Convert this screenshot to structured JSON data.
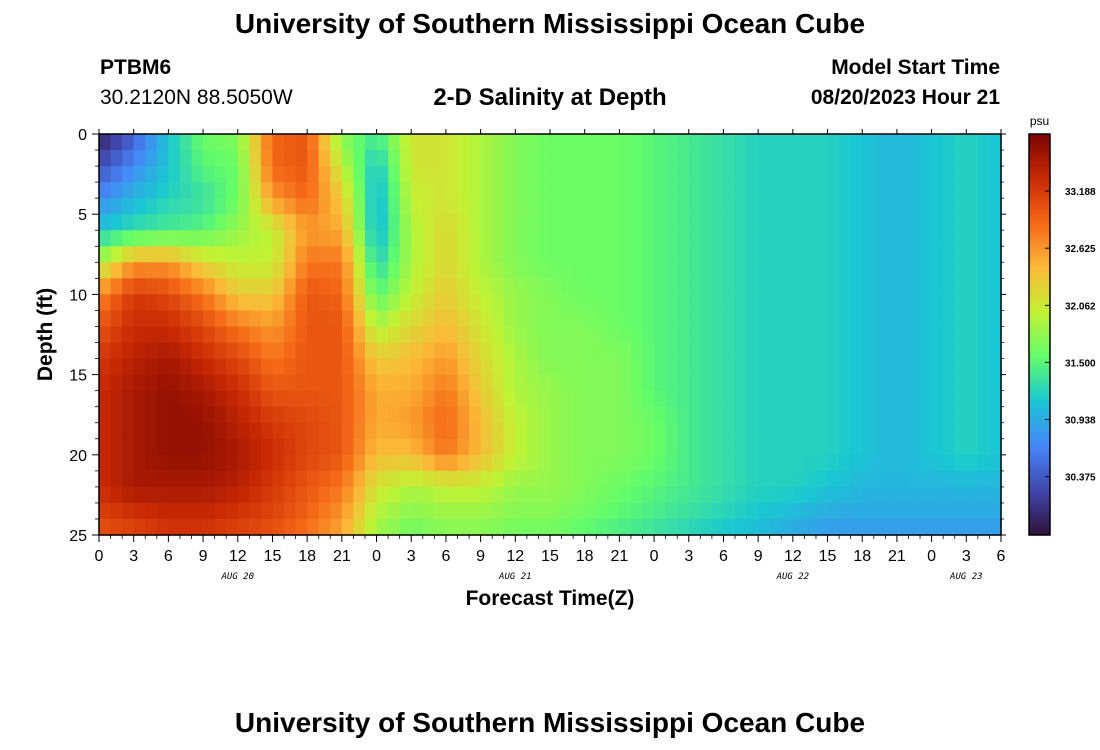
{
  "header": {
    "title": "University of Southern Mississippi Ocean Cube",
    "station": "PTBM6",
    "coordinates": "30.2120N  88.5050W",
    "chart_title": "2-D Salinity at Depth",
    "start_label": "Model Start Time",
    "start_value": "08/20/2023 Hour 21"
  },
  "footer": {
    "title": "University of Southern Mississippi Ocean Cube"
  },
  "colors": {
    "ramp": [
      "#30123b",
      "#4146ac",
      "#4686f9",
      "#1ac7d2",
      "#62fc6b",
      "#c2f234",
      "#fbb938",
      "#f56918",
      "#c92904",
      "#7a0403"
    ]
  },
  "chart_data": {
    "type": "heatmap",
    "title": "2-D Salinity at Depth",
    "xlabel": "Forecast Time(Z)",
    "ylabel": "Depth (ft)",
    "x_range_hours": [
      0,
      78
    ],
    "ylim": [
      0,
      25
    ],
    "x_ticks": [
      "0",
      "3",
      "6",
      "9",
      "12",
      "15",
      "18",
      "21",
      "0",
      "3",
      "6",
      "9",
      "12",
      "15",
      "18",
      "21",
      "0",
      "3",
      "6",
      "9",
      "12",
      "15",
      "18",
      "21",
      "0",
      "3",
      "6"
    ],
    "y_ticks": [
      "0",
      "5",
      "10",
      "15",
      "20",
      "25"
    ],
    "date_labels": [
      {
        "text": "AUG 20",
        "hour": 12
      },
      {
        "text": "AUG 21",
        "hour": 36
      },
      {
        "text": "AUG 22",
        "hour": 60
      },
      {
        "text": "AUG 23",
        "hour": 75
      }
    ],
    "colorbar": {
      "unit": "psu",
      "min": 29.8,
      "max": 33.75,
      "ticks": [
        "33.188",
        "32.625",
        "32.062",
        "31.500",
        "30.938",
        "30.375"
      ]
    },
    "grid_hours": [
      0,
      3,
      6,
      9,
      12,
      15,
      18,
      21,
      24,
      27,
      30,
      33,
      36,
      39,
      42,
      45,
      48,
      51,
      54,
      57,
      60,
      63,
      66,
      69,
      72,
      75,
      78
    ],
    "grid_depths": [
      0,
      2,
      4,
      6,
      8,
      10,
      12,
      14,
      16,
      18,
      20,
      22,
      24,
      25
    ],
    "salinity": [
      [
        29.9,
        30.4,
        31.1,
        31.6,
        31.7,
        32.9,
        33.0,
        31.7,
        31.4,
        32.1,
        32.1,
        31.9,
        31.7,
        31.6,
        31.6,
        31.6,
        31.5,
        31.4,
        31.3,
        31.2,
        31.2,
        31.2,
        31.1,
        31.0,
        31.1,
        31.2,
        31.1
      ],
      [
        30.3,
        30.7,
        31.1,
        31.5,
        31.6,
        32.9,
        33.0,
        32.0,
        31.1,
        32.1,
        32.1,
        31.9,
        31.7,
        31.6,
        31.6,
        31.6,
        31.5,
        31.4,
        31.3,
        31.2,
        31.2,
        31.2,
        31.1,
        31.0,
        31.1,
        31.2,
        31.1
      ],
      [
        30.7,
        31.0,
        31.2,
        31.3,
        31.6,
        32.6,
        32.9,
        32.3,
        31.0,
        32.0,
        32.1,
        31.9,
        31.7,
        31.6,
        31.6,
        31.6,
        31.5,
        31.4,
        31.3,
        31.2,
        31.2,
        31.2,
        31.1,
        31.0,
        31.1,
        31.2,
        31.1
      ],
      [
        31.1,
        31.3,
        31.4,
        31.5,
        31.8,
        32.0,
        32.6,
        32.5,
        31.0,
        31.9,
        32.2,
        31.9,
        31.7,
        31.6,
        31.6,
        31.6,
        31.5,
        31.4,
        31.3,
        31.2,
        31.2,
        31.2,
        31.1,
        31.0,
        31.1,
        31.2,
        31.1
      ],
      [
        31.9,
        32.6,
        32.6,
        32.2,
        32.0,
        32.0,
        32.8,
        32.8,
        31.2,
        31.9,
        32.2,
        31.9,
        31.7,
        31.6,
        31.6,
        31.6,
        31.5,
        31.4,
        31.3,
        31.2,
        31.2,
        31.2,
        31.1,
        31.0,
        31.1,
        31.2,
        31.1
      ],
      [
        32.7,
        33.2,
        33.1,
        32.8,
        32.3,
        32.3,
        33.0,
        32.9,
        31.5,
        32.0,
        32.3,
        32.0,
        31.8,
        31.7,
        31.6,
        31.6,
        31.5,
        31.4,
        31.3,
        31.2,
        31.2,
        31.2,
        31.1,
        31.0,
        31.1,
        31.2,
        31.1
      ],
      [
        33.0,
        33.3,
        33.3,
        33.1,
        32.8,
        32.6,
        33.0,
        33.0,
        31.9,
        32.2,
        32.4,
        32.1,
        31.8,
        31.7,
        31.7,
        31.6,
        31.5,
        31.4,
        31.3,
        31.2,
        31.2,
        31.2,
        31.1,
        31.0,
        31.1,
        31.2,
        31.1
      ],
      [
        33.2,
        33.4,
        33.5,
        33.3,
        33.1,
        32.8,
        33.0,
        33.0,
        32.3,
        32.4,
        32.6,
        32.2,
        31.9,
        31.7,
        31.7,
        31.7,
        31.5,
        31.4,
        31.3,
        31.2,
        31.2,
        31.2,
        31.1,
        31.0,
        31.1,
        31.2,
        31.1
      ],
      [
        33.3,
        33.5,
        33.6,
        33.5,
        33.3,
        33.0,
        33.0,
        33.0,
        32.5,
        32.5,
        32.8,
        32.3,
        31.9,
        31.8,
        31.7,
        31.7,
        31.5,
        31.4,
        31.3,
        31.2,
        31.2,
        31.2,
        31.1,
        31.0,
        31.1,
        31.2,
        31.1
      ],
      [
        33.3,
        33.5,
        33.6,
        33.6,
        33.4,
        33.2,
        33.1,
        33.0,
        32.5,
        32.6,
        32.9,
        32.4,
        32.0,
        31.8,
        31.7,
        31.7,
        31.6,
        31.4,
        31.3,
        31.2,
        31.2,
        31.2,
        31.1,
        31.0,
        31.1,
        31.2,
        31.1
      ],
      [
        33.3,
        33.5,
        33.6,
        33.6,
        33.5,
        33.3,
        33.1,
        33.0,
        32.4,
        32.4,
        32.8,
        32.4,
        32.0,
        31.8,
        31.7,
        31.7,
        31.6,
        31.4,
        31.3,
        31.2,
        31.2,
        31.2,
        31.1,
        31.0,
        31.1,
        31.2,
        31.1
      ],
      [
        33.3,
        33.5,
        33.5,
        33.5,
        33.4,
        33.2,
        33.0,
        32.8,
        32.1,
        31.9,
        32.0,
        32.0,
        31.8,
        31.8,
        31.7,
        31.6,
        31.5,
        31.4,
        31.3,
        31.2,
        31.2,
        31.1,
        31.0,
        31.0,
        31.0,
        31.0,
        31.0
      ],
      [
        33.1,
        33.2,
        33.3,
        33.3,
        33.2,
        33.1,
        32.9,
        32.6,
        31.9,
        31.7,
        31.8,
        31.8,
        31.7,
        31.7,
        31.6,
        31.5,
        31.4,
        31.3,
        31.2,
        31.1,
        31.0,
        30.9,
        30.9,
        30.9,
        30.9,
        30.9,
        30.9
      ],
      [
        33.0,
        33.1,
        33.2,
        33.2,
        33.1,
        33.0,
        32.8,
        32.5,
        31.8,
        31.6,
        31.7,
        31.7,
        31.6,
        31.6,
        31.5,
        31.4,
        31.3,
        31.2,
        31.1,
        31.0,
        30.9,
        30.8,
        30.8,
        30.8,
        30.8,
        30.8,
        30.8
      ]
    ]
  }
}
